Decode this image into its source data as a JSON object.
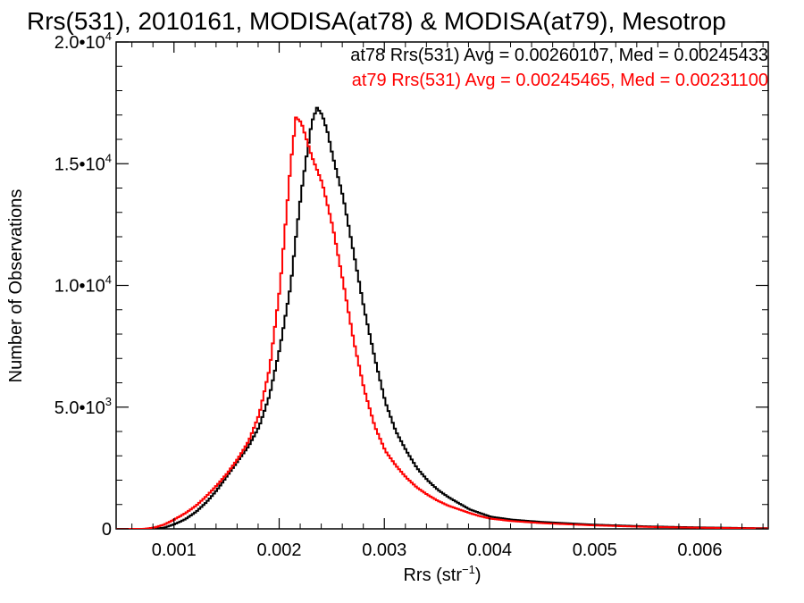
{
  "chart_data": {
    "type": "line",
    "title": "Rrs(531), 2010161, MODISA(at78) & MODISA(at79), Mesotrop",
    "xlabel": "Rrs (str",
    "xlabel_sup": "−1",
    "xlabel_close": ")",
    "ylabel": "Number of Observations",
    "xlim": [
      0.00045,
      0.00665
    ],
    "ylim": [
      0,
      20000
    ],
    "xticks": [
      {
        "value": 0.001,
        "label": "0.001"
      },
      {
        "value": 0.002,
        "label": "0.002"
      },
      {
        "value": 0.003,
        "label": "0.003"
      },
      {
        "value": 0.004,
        "label": "0.004"
      },
      {
        "value": 0.005,
        "label": "0.005"
      },
      {
        "value": 0.006,
        "label": "0.006"
      }
    ],
    "yticks": [
      {
        "value": 0,
        "base": "0",
        "exp": ""
      },
      {
        "value": 5000,
        "base": "5.0•10",
        "exp": "3"
      },
      {
        "value": 10000,
        "base": "1.0•10",
        "exp": "4"
      },
      {
        "value": 15000,
        "base": "1.5•10",
        "exp": "4"
      },
      {
        "value": 20000,
        "base": "2.0•10",
        "exp": "4"
      }
    ],
    "grid": false,
    "legend_position": "top-right",
    "series": [
      {
        "name": "at78",
        "annotation": "at78 Rrs(531) Avg = 0.00260107, Med = 0.00245433",
        "color": "#000000",
        "points": [
          [
            0.00045,
            0
          ],
          [
            0.0008,
            0
          ],
          [
            0.0009,
            50
          ],
          [
            0.001,
            200
          ],
          [
            0.0011,
            400
          ],
          [
            0.0012,
            700
          ],
          [
            0.0013,
            1100
          ],
          [
            0.0014,
            1600
          ],
          [
            0.0015,
            2200
          ],
          [
            0.0016,
            2800
          ],
          [
            0.0017,
            3400
          ],
          [
            0.0018,
            4200
          ],
          [
            0.0019,
            5500
          ],
          [
            0.002,
            7500
          ],
          [
            0.0021,
            10000
          ],
          [
            0.00215,
            12000
          ],
          [
            0.0022,
            13800
          ],
          [
            0.00225,
            15300
          ],
          [
            0.0023,
            16700
          ],
          [
            0.00235,
            17300
          ],
          [
            0.0024,
            17000
          ],
          [
            0.00245,
            16300
          ],
          [
            0.0025,
            15300
          ],
          [
            0.0026,
            13600
          ],
          [
            0.0027,
            11300
          ],
          [
            0.0028,
            9000
          ],
          [
            0.0029,
            7000
          ],
          [
            0.003,
            5200
          ],
          [
            0.0031,
            4000
          ],
          [
            0.0032,
            3200
          ],
          [
            0.0033,
            2500
          ],
          [
            0.0034,
            2000
          ],
          [
            0.0035,
            1600
          ],
          [
            0.0036,
            1300
          ],
          [
            0.0037,
            1050
          ],
          [
            0.0038,
            800
          ],
          [
            0.0039,
            650
          ],
          [
            0.004,
            500
          ],
          [
            0.0042,
            380
          ],
          [
            0.0045,
            280
          ],
          [
            0.005,
            170
          ],
          [
            0.0055,
            100
          ],
          [
            0.006,
            60
          ],
          [
            0.0065,
            30
          ],
          [
            0.00665,
            25
          ]
        ]
      },
      {
        "name": "at79",
        "annotation": "at79 Rrs(531) Avg = 0.00245465, Med = 0.00231100",
        "color": "#ff0000",
        "points": [
          [
            0.00045,
            0
          ],
          [
            0.0007,
            0
          ],
          [
            0.0008,
            50
          ],
          [
            0.0009,
            180
          ],
          [
            0.001,
            400
          ],
          [
            0.0011,
            650
          ],
          [
            0.0012,
            950
          ],
          [
            0.0013,
            1350
          ],
          [
            0.0014,
            1800
          ],
          [
            0.0015,
            2300
          ],
          [
            0.0016,
            2900
          ],
          [
            0.0017,
            3600
          ],
          [
            0.0018,
            4700
          ],
          [
            0.0019,
            6600
          ],
          [
            0.002,
            10000
          ],
          [
            0.00205,
            12500
          ],
          [
            0.0021,
            15000
          ],
          [
            0.00215,
            16900
          ],
          [
            0.0022,
            16700
          ],
          [
            0.00225,
            16000
          ],
          [
            0.0023,
            15300
          ],
          [
            0.0024,
            14200
          ],
          [
            0.0025,
            12400
          ],
          [
            0.0026,
            10100
          ],
          [
            0.0027,
            7700
          ],
          [
            0.0028,
            5700
          ],
          [
            0.0029,
            4200
          ],
          [
            0.003,
            3200
          ],
          [
            0.0031,
            2600
          ],
          [
            0.0032,
            2100
          ],
          [
            0.0033,
            1700
          ],
          [
            0.0034,
            1400
          ],
          [
            0.0035,
            1150
          ],
          [
            0.0036,
            950
          ],
          [
            0.0037,
            800
          ],
          [
            0.0038,
            650
          ],
          [
            0.0039,
            520
          ],
          [
            0.004,
            420
          ],
          [
            0.0042,
            320
          ],
          [
            0.0045,
            230
          ],
          [
            0.005,
            140
          ],
          [
            0.0055,
            80
          ],
          [
            0.006,
            45
          ],
          [
            0.0065,
            25
          ],
          [
            0.00665,
            20
          ]
        ]
      }
    ]
  }
}
